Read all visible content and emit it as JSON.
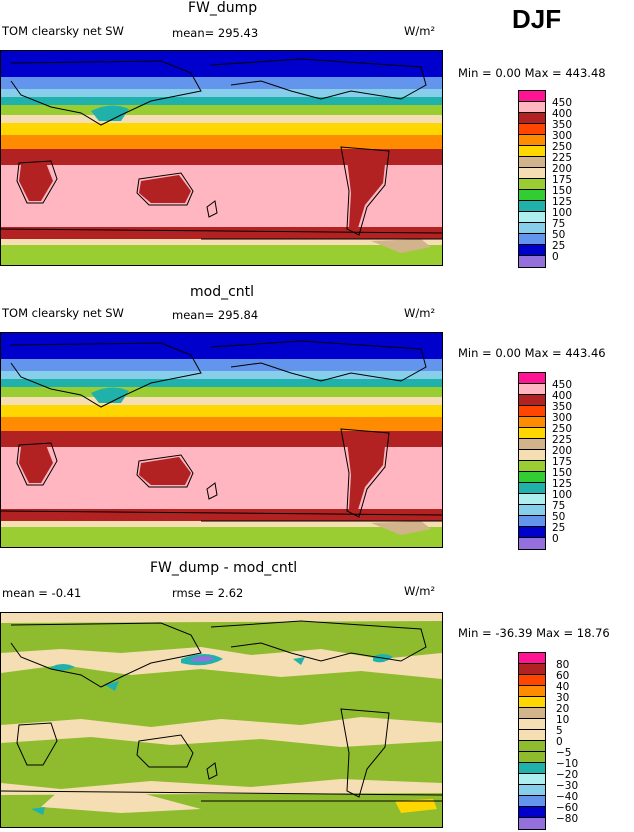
{
  "season": "DJF",
  "panels": [
    {
      "title": "FW_dump",
      "field_label": "TOM clearsky net SW",
      "mean_text": "mean= 295.43",
      "units": "W/m²",
      "minmax_text": "Min =    0.00 Max = 443.48",
      "levels": [
        "450",
        "400",
        "350",
        "300",
        "250",
        "225",
        "200",
        "175",
        "150",
        "125",
        "100",
        "75",
        "50",
        "25",
        "0"
      ]
    },
    {
      "title": "mod_cntl",
      "field_label": "TOM clearsky net SW",
      "mean_text": "mean= 295.84",
      "units": "W/m²",
      "minmax_text": "Min =    0.00 Max = 443.46",
      "levels": [
        "450",
        "400",
        "350",
        "300",
        "250",
        "225",
        "200",
        "175",
        "150",
        "125",
        "100",
        "75",
        "50",
        "25",
        "0"
      ]
    },
    {
      "title": "FW_dump - mod_cntl",
      "field_label": "mean =   -0.41",
      "mean_text": "rmse =    2.62",
      "units": "W/m²",
      "minmax_text": "Min = -36.39 Max =  18.76",
      "levels": [
        "80",
        "60",
        "40",
        "30",
        "20",
        "10",
        "5",
        "0",
        "−5",
        "−10",
        "−20",
        "−30",
        "−40",
        "−60",
        "−80"
      ]
    }
  ],
  "colors": {
    "abs_scale": [
      "#ff1493",
      "#ffb6c1",
      "#b22222",
      "#ff4500",
      "#ff8c00",
      "#ffd700",
      "#d2b48c",
      "#f5deb3",
      "#9acd32",
      "#32cd32",
      "#20b2aa",
      "#afeeee",
      "#87ceeb",
      "#6495ed",
      "#0000cd",
      "#9370db"
    ],
    "diff_scale": [
      "#ff1493",
      "#b22222",
      "#ff4500",
      "#ff8c00",
      "#ffd700",
      "#d2b48c",
      "#f5deb3",
      "#8fbc2f",
      "#20b2aa",
      "#afeeee",
      "#87ceeb",
      "#6495ed",
      "#0000cd",
      "#9370db",
      "#9370db",
      "#9370db"
    ]
  },
  "chart_data": [
    {
      "type": "heatmap",
      "title": "FW_dump",
      "subtitle": "TOM clearsky net SW",
      "units": "W/m²",
      "mean": 295.43,
      "min": 0.0,
      "max": 443.48,
      "contour_levels": [
        0,
        25,
        50,
        75,
        100,
        125,
        150,
        175,
        200,
        225,
        250,
        300,
        350,
        400,
        450
      ],
      "zonal_bands": [
        {
          "lat_range": [
            60,
            90
          ],
          "value": 25
        },
        {
          "lat_range": [
            45,
            60
          ],
          "value": 150
        },
        {
          "lat_range": [
            35,
            45
          ],
          "value": 250
        },
        {
          "lat_range": [
            20,
            35
          ],
          "value": 350
        },
        {
          "lat_range": [
            -55,
            20
          ],
          "value": 400
        },
        {
          "lat_range": [
            -65,
            -55
          ],
          "value": 350
        },
        {
          "lat_range": [
            -90,
            -65
          ],
          "value": 150
        }
      ]
    },
    {
      "type": "heatmap",
      "title": "mod_cntl",
      "subtitle": "TOM clearsky net SW",
      "units": "W/m²",
      "mean": 295.84,
      "min": 0.0,
      "max": 443.46,
      "contour_levels": [
        0,
        25,
        50,
        75,
        100,
        125,
        150,
        175,
        200,
        225,
        250,
        300,
        350,
        400,
        450
      ],
      "zonal_bands": [
        {
          "lat_range": [
            60,
            90
          ],
          "value": 25
        },
        {
          "lat_range": [
            45,
            60
          ],
          "value": 150
        },
        {
          "lat_range": [
            35,
            45
          ],
          "value": 250
        },
        {
          "lat_range": [
            20,
            35
          ],
          "value": 350
        },
        {
          "lat_range": [
            -55,
            20
          ],
          "value": 400
        },
        {
          "lat_range": [
            -65,
            -55
          ],
          "value": 350
        },
        {
          "lat_range": [
            -90,
            -65
          ],
          "value": 150
        }
      ]
    },
    {
      "type": "heatmap",
      "title": "FW_dump - mod_cntl",
      "units": "W/m²",
      "mean": -0.41,
      "rmse": 2.62,
      "min": -36.39,
      "max": 18.76,
      "contour_levels": [
        -80,
        -60,
        -40,
        -30,
        -20,
        -10,
        -5,
        0,
        5,
        10,
        20,
        30,
        40,
        60,
        80
      ]
    }
  ]
}
